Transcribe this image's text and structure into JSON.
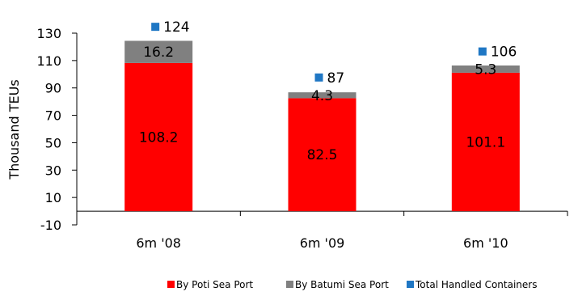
{
  "chart_data": {
    "type": "bar",
    "stacked": true,
    "categories": [
      "6m '08",
      "6m '09",
      "6m '10"
    ],
    "series": [
      {
        "name": "By Poti Sea Port",
        "values": [
          108.2,
          82.5,
          101.1
        ],
        "color": "#ff0000"
      },
      {
        "name": "By Batumi Sea Port",
        "values": [
          16.2,
          4.3,
          5.3
        ],
        "color": "#808080"
      }
    ],
    "totals": {
      "name": "Total Handled Containers",
      "values": [
        124,
        87,
        106
      ],
      "labels": [
        "124",
        "87",
        "106"
      ],
      "color": "#1f77c4"
    },
    "segment_labels": [
      [
        "108.2",
        "82.5",
        "101.1"
      ],
      [
        "16.2",
        "4.3",
        "5.3"
      ]
    ],
    "ylabel": "Thousand TEUs",
    "ylim": [
      -10,
      130
    ],
    "yticks": [
      -10,
      10,
      30,
      50,
      70,
      90,
      110,
      130
    ],
    "ytick_labels": [
      "-10",
      "10",
      "30",
      "50",
      "70",
      "90",
      "110",
      "130"
    ],
    "grid": false,
    "legend_position": "bottom"
  }
}
